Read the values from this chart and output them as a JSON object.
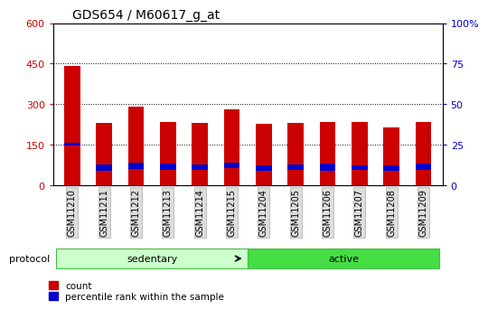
{
  "title": "GDS654 / M60617_g_at",
  "samples": [
    "GSM11210",
    "GSM11211",
    "GSM11212",
    "GSM11213",
    "GSM11214",
    "GSM11215",
    "GSM11204",
    "GSM11205",
    "GSM11206",
    "GSM11207",
    "GSM11208",
    "GSM11209"
  ],
  "count_values": [
    440,
    230,
    290,
    235,
    232,
    280,
    228,
    232,
    233,
    233,
    215,
    233
  ],
  "percentile_bottom": [
    148,
    55,
    60,
    58,
    56,
    62,
    53,
    56,
    55,
    57,
    53,
    57
  ],
  "percentile_values": [
    10,
    22,
    22,
    22,
    22,
    22,
    20,
    22,
    25,
    18,
    22,
    22
  ],
  "groups": [
    {
      "label": "sedentary",
      "start": 0,
      "end": 6,
      "color": "#ccffcc",
      "edge": "#44bb44"
    },
    {
      "label": "active",
      "start": 6,
      "end": 12,
      "color": "#44dd44",
      "edge": "#44bb44"
    }
  ],
  "left_ylim": [
    0,
    600
  ],
  "left_yticks": [
    0,
    150,
    300,
    450,
    600
  ],
  "right_ylim": [
    0,
    100
  ],
  "right_yticks": [
    0,
    25,
    50,
    75,
    100
  ],
  "right_yticklabels": [
    "0",
    "25",
    "50",
    "75",
    "100%"
  ],
  "bar_color_red": "#cc0000",
  "bar_color_blue": "#0000cc",
  "bar_width": 0.5,
  "bg_color": "#ffffff",
  "tick_label_color_left": "#cc0000",
  "tick_label_color_right": "#0000cc",
  "protocol_label": "protocol",
  "legend_count": "count",
  "legend_percentile": "percentile rank within the sample"
}
